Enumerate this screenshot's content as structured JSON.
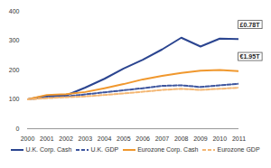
{
  "chart_data": {
    "type": "line",
    "x": [
      2000,
      2001,
      2002,
      2003,
      2004,
      2005,
      2006,
      2007,
      2008,
      2009,
      2010,
      2011
    ],
    "xlim": [
      2000,
      2011
    ],
    "xticks": [
      2000,
      2001,
      2002,
      2003,
      2004,
      2005,
      2006,
      2007,
      2008,
      2009,
      2010,
      2011
    ],
    "ylim": [
      0,
      400
    ],
    "yticks": [
      0,
      100,
      200,
      300,
      400
    ],
    "grid": false,
    "legend": "bottom",
    "series": [
      {
        "name": "U.K. Corp. Cash",
        "color": "#2b4590",
        "line_style": "solid",
        "values": [
          100,
          112,
          113,
          140,
          170,
          205,
          235,
          270,
          310,
          280,
          307,
          305
        ]
      },
      {
        "name": "U.K. GDP",
        "color": "#3d559e",
        "line_style": "dashed",
        "values": [
          100,
          106,
          110,
          117,
          124,
          131,
          138,
          146,
          148,
          142,
          148,
          153
        ]
      },
      {
        "name": "Eurozone Corp. Cash",
        "color": "#f0982e",
        "line_style": "solid",
        "values": [
          100,
          115,
          118,
          125,
          138,
          152,
          168,
          180,
          190,
          198,
          200,
          196
        ]
      },
      {
        "name": "Eurozone GDP",
        "color": "#f4b774",
        "line_style": "dashed",
        "values": [
          100,
          104,
          107,
          110,
          115,
          120,
          126,
          132,
          136,
          132,
          136,
          140
        ]
      }
    ],
    "annotations": [
      {
        "text": "£0.78T",
        "series": "U.K. Corp. Cash"
      },
      {
        "text": "€1.95T",
        "series": "Eurozone Corp. Cash"
      }
    ]
  }
}
